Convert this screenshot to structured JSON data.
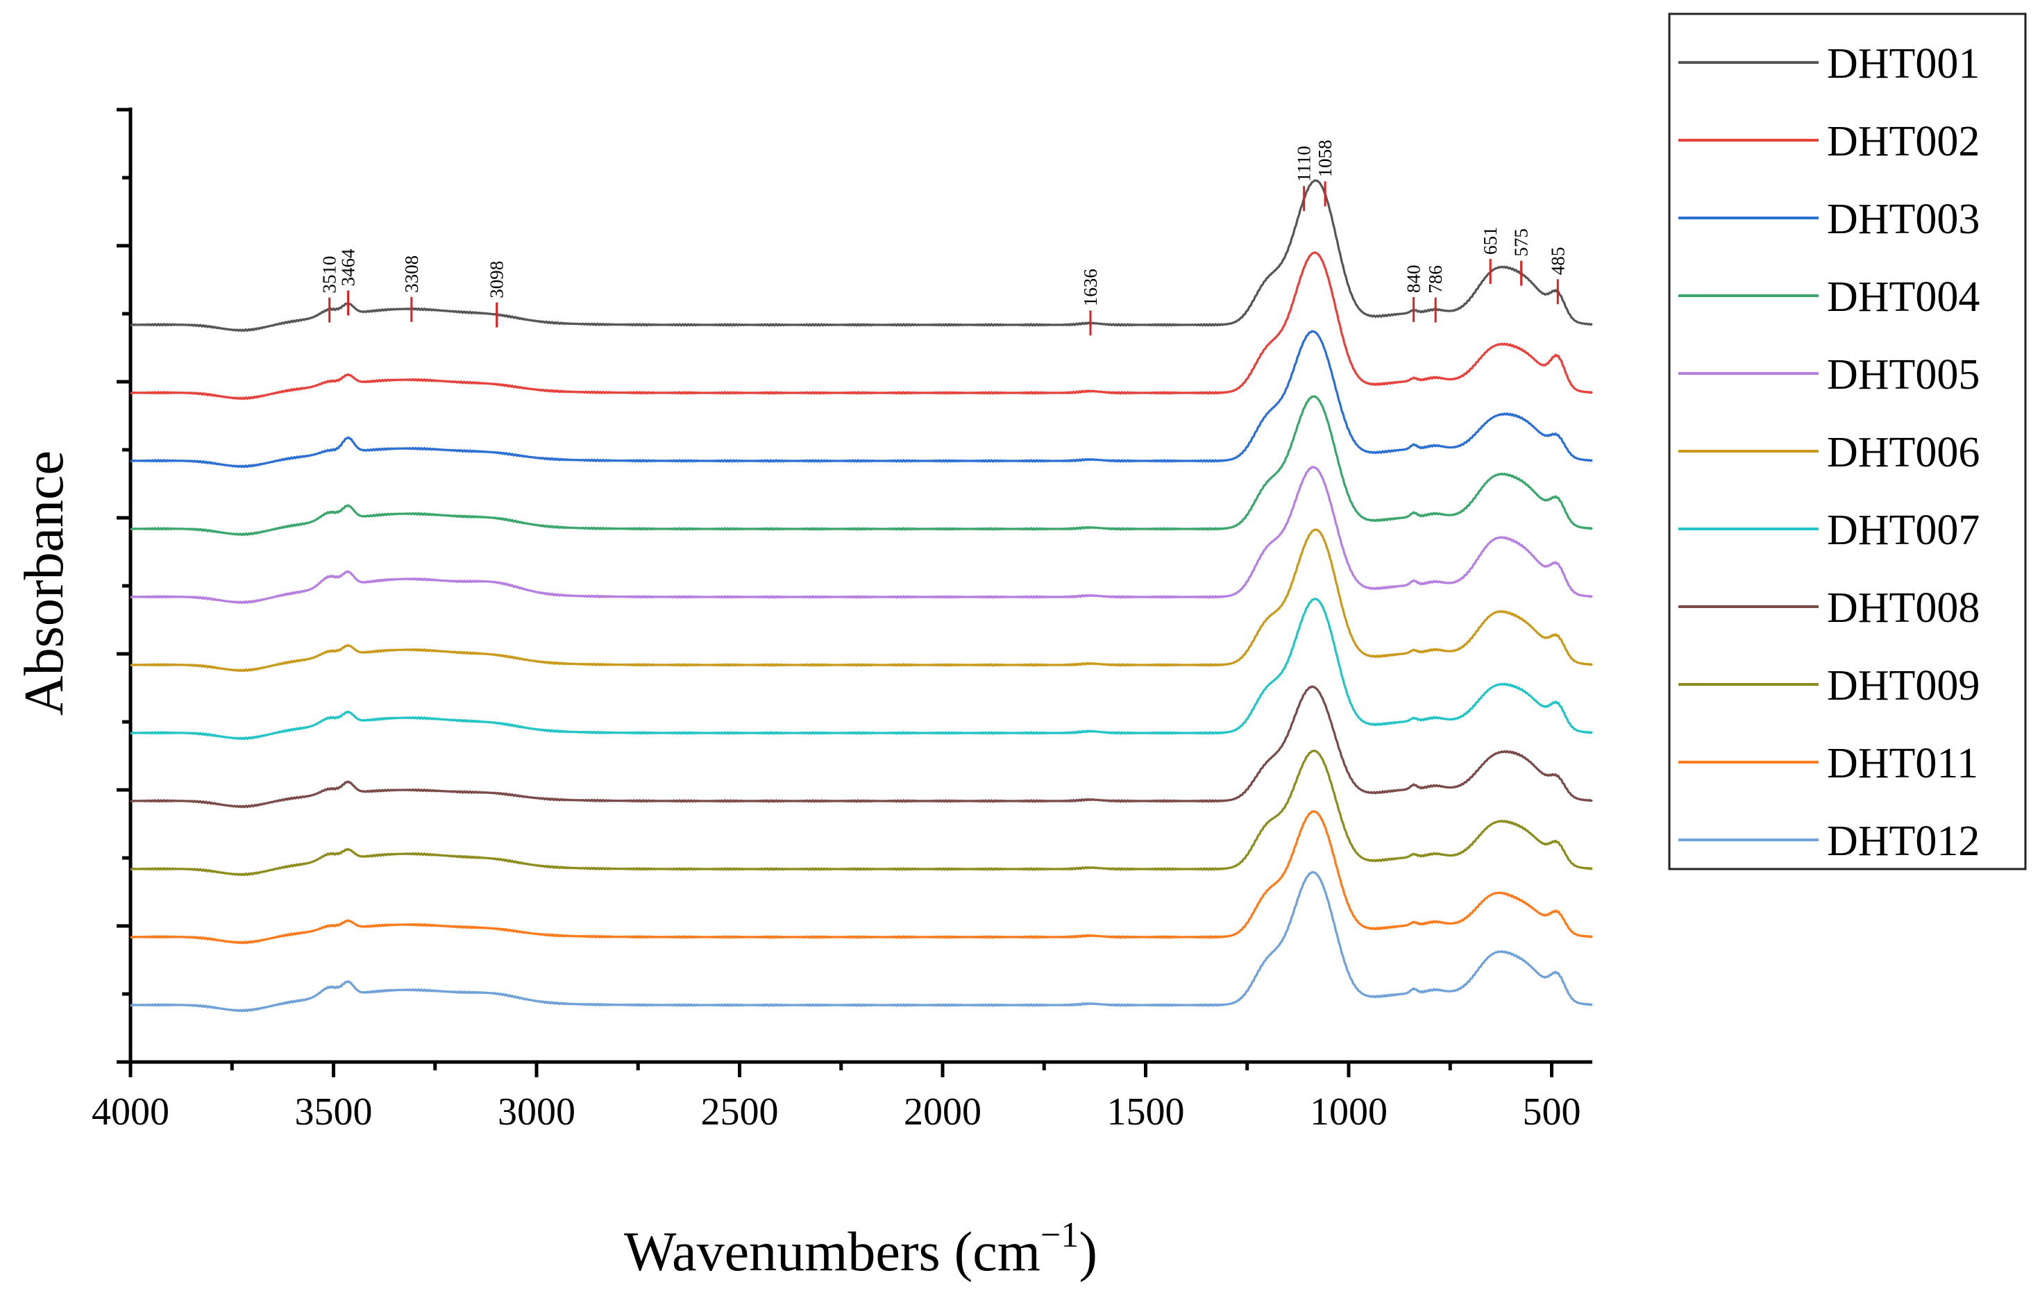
{
  "chart_data": {
    "type": "line",
    "title": "",
    "xlabel_main": "Wavenumbers (cm",
    "xlabel_sup": "−1",
    "xlabel_close": ")",
    "ylabel": "Absorbance",
    "xlim": [
      4000,
      400
    ],
    "x_reversed": true,
    "x_ticks": [
      4000,
      3500,
      3000,
      2500,
      2000,
      1500,
      1000,
      500
    ],
    "x_tick_labels": [
      "4000",
      "3500",
      "3000",
      "2500",
      "2000",
      "1500",
      "1000",
      "500"
    ],
    "y_tick_labels_shown": false,
    "legend_position": "right",
    "offset_stacked": true,
    "peak_labels": [
      "3510",
      "3464",
      "3308",
      "3098",
      "1636",
      "1110",
      "1058",
      "840",
      "786",
      "651",
      "575",
      "485"
    ],
    "peak_positions": [
      3510,
      3464,
      3308,
      3098,
      1636,
      1110,
      1058,
      840,
      786,
      651,
      575,
      485
    ],
    "series": [
      {
        "name": "DHT001",
        "color": "#555555",
        "baseline": 0.0,
        "bands": [
          [
            3510,
            0.1,
            22
          ],
          [
            3464,
            0.14,
            14
          ],
          [
            3308,
            0.15,
            150
          ],
          [
            3098,
            0.05,
            60
          ],
          [
            1636,
            0.025,
            25
          ],
          [
            1200,
            0.55,
            35
          ],
          [
            1110,
            1.23,
            42
          ],
          [
            1058,
            1.28,
            40
          ],
          [
            840,
            0.04,
            8
          ],
          [
            786,
            0.04,
            20
          ],
          [
            651,
            0.42,
            40
          ],
          [
            575,
            0.62,
            55
          ],
          [
            485,
            0.3,
            18
          ]
        ]
      },
      {
        "name": "DHT002",
        "color": "#e8413c",
        "baseline": 0.14,
        "bands": [
          [
            3510,
            0.06,
            22
          ],
          [
            3464,
            0.12,
            14
          ],
          [
            3308,
            0.11,
            150
          ],
          [
            3098,
            0.04,
            60
          ],
          [
            1636,
            0.025,
            25
          ],
          [
            1200,
            0.55,
            35
          ],
          [
            1110,
            1.26,
            42
          ],
          [
            1058,
            1.18,
            40
          ],
          [
            840,
            0.04,
            8
          ],
          [
            786,
            0.04,
            20
          ],
          [
            651,
            0.34,
            40
          ],
          [
            575,
            0.52,
            55
          ],
          [
            485,
            0.38,
            18
          ]
        ]
      },
      {
        "name": "DHT003",
        "color": "#2b6fd4",
        "baseline": 0.28,
        "bands": [
          [
            3510,
            0.05,
            22
          ],
          [
            3464,
            0.2,
            14
          ],
          [
            3308,
            0.1,
            150
          ],
          [
            3098,
            0.04,
            60
          ],
          [
            1636,
            0.02,
            25
          ],
          [
            1200,
            0.55,
            35
          ],
          [
            1110,
            1.28,
            42
          ],
          [
            1058,
            0.96,
            40
          ],
          [
            840,
            0.06,
            8
          ],
          [
            786,
            0.04,
            20
          ],
          [
            651,
            0.3,
            40
          ],
          [
            575,
            0.52,
            55
          ],
          [
            485,
            0.22,
            18
          ]
        ]
      },
      {
        "name": "DHT004",
        "color": "#3aa66c",
        "baseline": 0.42,
        "bands": [
          [
            3510,
            0.12,
            22
          ],
          [
            3464,
            0.17,
            14
          ],
          [
            3308,
            0.14,
            150
          ],
          [
            3098,
            0.06,
            60
          ],
          [
            1636,
            0.02,
            25
          ],
          [
            1200,
            0.55,
            35
          ],
          [
            1110,
            1.25,
            42
          ],
          [
            1058,
            1.05,
            40
          ],
          [
            840,
            0.06,
            8
          ],
          [
            786,
            0.04,
            20
          ],
          [
            651,
            0.4,
            40
          ],
          [
            575,
            0.58,
            55
          ],
          [
            485,
            0.28,
            18
          ]
        ]
      },
      {
        "name": "DHT005",
        "color": "#b57ee0",
        "baseline": 0.56,
        "bands": [
          [
            3510,
            0.16,
            22
          ],
          [
            3464,
            0.17,
            14
          ],
          [
            3308,
            0.18,
            150
          ],
          [
            3098,
            0.1,
            60
          ],
          [
            1636,
            0.02,
            25
          ],
          [
            1200,
            0.6,
            35
          ],
          [
            1110,
            1.25,
            42
          ],
          [
            1058,
            1.0,
            40
          ],
          [
            840,
            0.06,
            8
          ],
          [
            786,
            0.04,
            20
          ],
          [
            651,
            0.45,
            40
          ],
          [
            575,
            0.62,
            55
          ],
          [
            485,
            0.3,
            18
          ]
        ]
      },
      {
        "name": "DHT006",
        "color": "#c99a1a",
        "baseline": 0.7,
        "bands": [
          [
            3510,
            0.08,
            22
          ],
          [
            3464,
            0.12,
            14
          ],
          [
            3308,
            0.14,
            150
          ],
          [
            3098,
            0.05,
            60
          ],
          [
            1636,
            0.02,
            25
          ],
          [
            1200,
            0.55,
            35
          ],
          [
            1110,
            1.15,
            42
          ],
          [
            1058,
            1.2,
            40
          ],
          [
            840,
            0.04,
            8
          ],
          [
            786,
            0.04,
            20
          ],
          [
            651,
            0.4,
            40
          ],
          [
            575,
            0.55,
            55
          ],
          [
            485,
            0.26,
            18
          ]
        ]
      },
      {
        "name": "DHT007",
        "color": "#22c4c6",
        "baseline": 0.84,
        "bands": [
          [
            3510,
            0.1,
            22
          ],
          [
            3464,
            0.14,
            14
          ],
          [
            3308,
            0.14,
            150
          ],
          [
            3098,
            0.05,
            60
          ],
          [
            1636,
            0.025,
            25
          ],
          [
            1200,
            0.55,
            35
          ],
          [
            1110,
            1.18,
            42
          ],
          [
            1058,
            1.15,
            40
          ],
          [
            840,
            0.04,
            8
          ],
          [
            786,
            0.04,
            20
          ],
          [
            651,
            0.34,
            40
          ],
          [
            575,
            0.52,
            55
          ],
          [
            485,
            0.28,
            18
          ]
        ]
      },
      {
        "name": "DHT008",
        "color": "#7a4a48",
        "baseline": 0.98,
        "bands": [
          [
            3510,
            0.08,
            22
          ],
          [
            3464,
            0.15,
            14
          ],
          [
            3308,
            0.08,
            150
          ],
          [
            3098,
            0.04,
            60
          ],
          [
            1636,
            0.02,
            25
          ],
          [
            1200,
            0.45,
            35
          ],
          [
            1110,
            1.15,
            42
          ],
          [
            1058,
            0.82,
            40
          ],
          [
            840,
            0.06,
            8
          ],
          [
            786,
            0.04,
            20
          ],
          [
            651,
            0.32,
            40
          ],
          [
            575,
            0.55,
            55
          ],
          [
            485,
            0.2,
            18
          ]
        ]
      },
      {
        "name": "DHT009",
        "color": "#8c8c1e",
        "baseline": 1.12,
        "bands": [
          [
            3510,
            0.1,
            22
          ],
          [
            3464,
            0.12,
            14
          ],
          [
            3308,
            0.14,
            150
          ],
          [
            3098,
            0.05,
            60
          ],
          [
            1636,
            0.02,
            25
          ],
          [
            1200,
            0.55,
            35
          ],
          [
            1110,
            1.1,
            42
          ],
          [
            1058,
            0.95,
            40
          ],
          [
            840,
            0.04,
            8
          ],
          [
            786,
            0.04,
            20
          ],
          [
            651,
            0.34,
            40
          ],
          [
            575,
            0.5,
            55
          ],
          [
            485,
            0.24,
            18
          ]
        ]
      },
      {
        "name": "DHT011",
        "color": "#ff7a1a",
        "baseline": 1.26,
        "bands": [
          [
            3510,
            0.06,
            22
          ],
          [
            3464,
            0.1,
            14
          ],
          [
            3308,
            0.1,
            150
          ],
          [
            3098,
            0.04,
            60
          ],
          [
            1636,
            0.02,
            25
          ],
          [
            1200,
            0.55,
            35
          ],
          [
            1110,
            1.18,
            42
          ],
          [
            1058,
            1.0,
            40
          ],
          [
            840,
            0.04,
            8
          ],
          [
            786,
            0.04,
            20
          ],
          [
            651,
            0.34,
            40
          ],
          [
            575,
            0.42,
            55
          ],
          [
            485,
            0.24,
            18
          ]
        ]
      },
      {
        "name": "DHT012",
        "color": "#6fa1d8",
        "baseline": 1.4,
        "bands": [
          [
            3510,
            0.14,
            22
          ],
          [
            3464,
            0.17,
            14
          ],
          [
            3308,
            0.14,
            150
          ],
          [
            3098,
            0.07,
            60
          ],
          [
            1636,
            0.02,
            25
          ],
          [
            1200,
            0.55,
            35
          ],
          [
            1110,
            1.3,
            42
          ],
          [
            1058,
            1.0,
            40
          ],
          [
            840,
            0.06,
            8
          ],
          [
            786,
            0.04,
            20
          ],
          [
            651,
            0.4,
            40
          ],
          [
            575,
            0.55,
            55
          ],
          [
            485,
            0.3,
            18
          ]
        ]
      }
    ]
  }
}
